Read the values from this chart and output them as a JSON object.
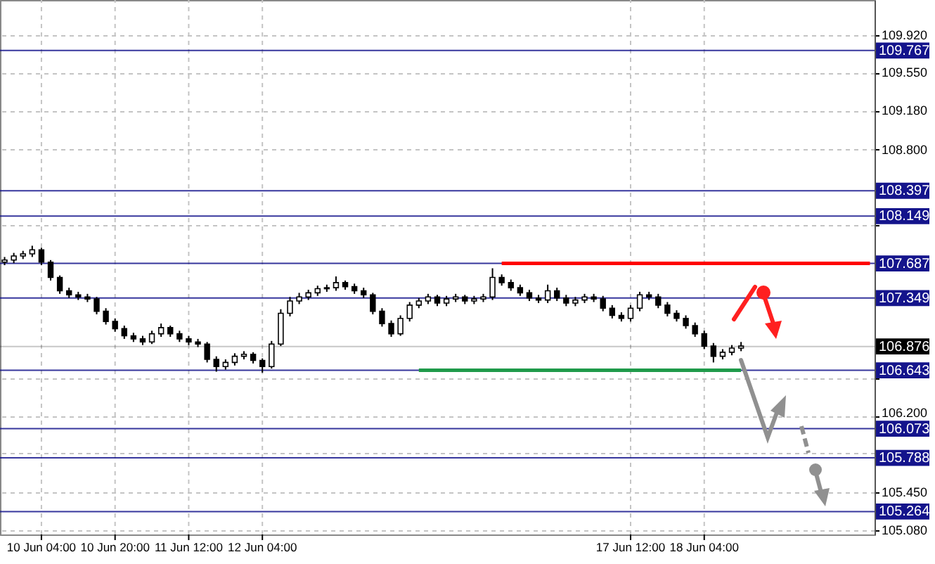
{
  "chart_data": {
    "type": "candlestick",
    "color": "#000000",
    "categories": [
      null,
      null,
      null,
      null,
      "10 Jun 04:00",
      null,
      null,
      null,
      null,
      null,
      null,
      null,
      "10 Jun 20:00",
      null,
      null,
      null,
      null,
      null,
      null,
      null,
      "11 Jun 12:00",
      null,
      null,
      null,
      null,
      null,
      null,
      null,
      "12 Jun 04:00",
      null,
      null,
      null,
      null,
      null,
      null,
      null,
      null,
      null,
      null,
      null,
      null,
      null,
      null,
      null,
      null,
      null,
      null,
      null,
      null,
      null,
      null,
      null,
      null,
      null,
      null,
      null,
      null,
      null,
      null,
      null,
      null,
      null,
      null,
      null,
      null,
      null,
      null,
      null,
      "17 Jun 12:00",
      null,
      null,
      null,
      null,
      null,
      null,
      null,
      "18 Jun 04:00",
      null,
      null,
      null,
      null,
      null,
      null,
      null,
      null,
      null,
      null,
      null,
      null,
      null,
      null,
      null,
      null,
      null,
      null
    ],
    "ohlc": [
      [
        107.7,
        107.75,
        107.67,
        107.72
      ],
      [
        107.72,
        107.79,
        107.69,
        107.76
      ],
      [
        107.76,
        107.81,
        107.73,
        107.78
      ],
      [
        107.78,
        107.86,
        107.75,
        107.82
      ],
      [
        107.82,
        107.84,
        107.67,
        107.7
      ],
      [
        107.7,
        107.72,
        107.52,
        107.55
      ],
      [
        107.55,
        107.57,
        107.39,
        107.42
      ],
      [
        107.42,
        107.45,
        107.35,
        107.38
      ],
      [
        107.38,
        107.41,
        107.33,
        107.36
      ],
      [
        107.36,
        107.39,
        107.31,
        107.34
      ],
      [
        107.34,
        107.36,
        107.19,
        107.22
      ],
      [
        107.22,
        107.25,
        107.09,
        107.12
      ],
      [
        107.12,
        107.15,
        107.02,
        107.05
      ],
      [
        107.05,
        107.08,
        106.95,
        106.98
      ],
      [
        106.98,
        107.01,
        106.92,
        106.95
      ],
      [
        106.95,
        106.98,
        106.89,
        106.92
      ],
      [
        106.92,
        107.03,
        106.9,
        107.0
      ],
      [
        107.0,
        107.1,
        106.97,
        107.06
      ],
      [
        107.06,
        107.08,
        106.97,
        107.0
      ],
      [
        107.0,
        107.03,
        106.92,
        106.95
      ],
      [
        106.95,
        106.98,
        106.89,
        106.92
      ],
      [
        106.92,
        106.95,
        106.87,
        106.9
      ],
      [
        106.9,
        106.92,
        106.72,
        106.75
      ],
      [
        106.75,
        106.78,
        106.63,
        106.68
      ],
      [
        106.68,
        106.75,
        106.65,
        106.72
      ],
      [
        106.72,
        106.81,
        106.69,
        106.78
      ],
      [
        106.78,
        106.83,
        106.75,
        106.8
      ],
      [
        106.8,
        106.82,
        106.71,
        106.74
      ],
      [
        106.74,
        106.76,
        106.62,
        106.68
      ],
      [
        106.68,
        106.93,
        106.66,
        106.9
      ],
      [
        106.9,
        107.24,
        106.88,
        107.2
      ],
      [
        107.2,
        107.36,
        107.17,
        107.32
      ],
      [
        107.32,
        107.4,
        107.29,
        107.36
      ],
      [
        107.36,
        107.43,
        107.33,
        107.4
      ],
      [
        107.4,
        107.47,
        107.37,
        107.44
      ],
      [
        107.44,
        107.48,
        107.41,
        107.45
      ],
      [
        107.45,
        107.56,
        107.42,
        107.5
      ],
      [
        107.5,
        107.52,
        107.43,
        107.46
      ],
      [
        107.46,
        107.49,
        107.39,
        107.42
      ],
      [
        107.42,
        107.45,
        107.35,
        107.38
      ],
      [
        107.38,
        107.4,
        107.19,
        107.22
      ],
      [
        107.22,
        107.25,
        107.07,
        107.1
      ],
      [
        107.1,
        107.13,
        106.97,
        107.0
      ],
      [
        107.0,
        107.18,
        106.98,
        107.15
      ],
      [
        107.15,
        107.31,
        107.12,
        107.28
      ],
      [
        107.28,
        107.35,
        107.25,
        107.32
      ],
      [
        107.32,
        107.39,
        107.29,
        107.36
      ],
      [
        107.36,
        107.38,
        107.27,
        107.3
      ],
      [
        107.3,
        107.37,
        107.27,
        107.34
      ],
      [
        107.34,
        107.39,
        107.31,
        107.36
      ],
      [
        107.36,
        107.38,
        107.29,
        107.32
      ],
      [
        107.32,
        107.37,
        107.29,
        107.34
      ],
      [
        107.34,
        107.39,
        107.31,
        107.36
      ],
      [
        107.36,
        107.64,
        107.33,
        107.55
      ],
      [
        107.55,
        107.58,
        107.47,
        107.5
      ],
      [
        107.5,
        107.53,
        107.42,
        107.45
      ],
      [
        107.45,
        107.48,
        107.37,
        107.4
      ],
      [
        107.4,
        107.43,
        107.32,
        107.35
      ],
      [
        107.35,
        107.38,
        107.3,
        107.33
      ],
      [
        107.33,
        107.48,
        107.3,
        107.42
      ],
      [
        107.42,
        107.45,
        107.32,
        107.35
      ],
      [
        107.35,
        107.38,
        107.27,
        107.3
      ],
      [
        107.3,
        107.36,
        107.27,
        107.33
      ],
      [
        107.33,
        107.39,
        107.3,
        107.36
      ],
      [
        107.36,
        107.39,
        107.31,
        107.34
      ],
      [
        107.34,
        107.37,
        107.22,
        107.25
      ],
      [
        107.25,
        107.28,
        107.15,
        107.18
      ],
      [
        107.18,
        107.21,
        107.12,
        107.15
      ],
      [
        107.15,
        107.28,
        107.12,
        107.25
      ],
      [
        107.25,
        107.41,
        107.22,
        107.38
      ],
      [
        107.38,
        107.41,
        107.33,
        107.36
      ],
      [
        107.36,
        107.39,
        107.25,
        107.28
      ],
      [
        107.28,
        107.31,
        107.17,
        107.2
      ],
      [
        107.2,
        107.23,
        107.12,
        107.15
      ],
      [
        107.15,
        107.18,
        107.05,
        107.08
      ],
      [
        107.08,
        107.11,
        106.97,
        107.0
      ],
      [
        107.0,
        107.03,
        106.85,
        106.88
      ],
      [
        106.88,
        106.91,
        106.72,
        106.78
      ],
      [
        106.78,
        106.85,
        106.75,
        106.82
      ],
      [
        106.82,
        106.89,
        106.79,
        106.86
      ],
      [
        106.86,
        106.92,
        106.83,
        106.88
      ],
      null,
      null,
      null,
      null,
      null,
      null,
      null,
      null,
      null,
      null,
      null,
      null,
      null,
      null
    ],
    "series": [
      {
        "type": "line",
        "color": "#ff0000",
        "values": [
          null,
          null,
          null,
          null,
          null,
          null,
          null,
          null,
          null,
          null,
          null,
          null,
          null,
          null,
          null,
          null,
          null,
          null,
          null,
          null,
          null,
          null,
          null,
          null,
          null,
          null,
          null,
          null,
          null,
          null,
          null,
          null,
          null,
          null,
          null,
          null,
          null,
          null,
          null,
          null,
          null,
          null,
          null,
          null,
          null,
          null,
          null,
          null,
          null,
          null,
          null,
          null,
          null,
          null,
          107.687,
          107.687,
          107.687,
          107.687,
          107.687,
          107.687,
          107.687,
          107.687,
          107.687,
          107.687,
          107.687,
          107.687,
          107.687,
          107.687,
          107.687,
          107.687,
          107.687,
          107.687,
          107.687,
          107.687,
          107.687,
          107.687,
          107.687,
          107.687,
          107.687,
          107.687,
          107.687,
          107.687,
          107.687,
          107.687,
          107.687,
          107.687,
          107.687,
          107.687,
          107.687,
          107.687,
          107.687,
          107.687,
          107.687,
          107.687,
          107.687
        ]
      },
      {
        "type": "line",
        "color": "#1f9a4a",
        "values": [
          null,
          null,
          null,
          null,
          null,
          null,
          null,
          null,
          null,
          null,
          null,
          null,
          null,
          null,
          null,
          null,
          null,
          null,
          null,
          null,
          null,
          null,
          null,
          null,
          null,
          null,
          null,
          null,
          null,
          null,
          null,
          null,
          null,
          null,
          null,
          null,
          null,
          null,
          null,
          null,
          null,
          null,
          null,
          null,
          null,
          106.643,
          106.643,
          106.643,
          106.643,
          106.643,
          106.643,
          106.643,
          106.643,
          106.643,
          106.643,
          106.643,
          106.643,
          106.643,
          106.643,
          106.643,
          106.643,
          106.643,
          106.643,
          106.643,
          106.643,
          106.643,
          106.643,
          106.643,
          106.643,
          106.643,
          106.643,
          106.643,
          106.643,
          106.643,
          106.643,
          106.643,
          106.643,
          106.643,
          106.643,
          106.643,
          106.643,
          null,
          null,
          null,
          null,
          null,
          null,
          null,
          null,
          null,
          null,
          null,
          null,
          null,
          null
        ]
      }
    ],
    "ylim": [
      105.04,
      110.26
    ],
    "yticks": [
      {
        "value": 109.92,
        "label": "109.920"
      },
      {
        "value": 109.55,
        "label": "109.550"
      },
      {
        "value": 109.18,
        "label": "109.180"
      },
      {
        "value": 108.8,
        "label": "108.800"
      },
      {
        "value": 108.06,
        "label": null
      },
      {
        "value": 106.57,
        "label": null
      },
      {
        "value": 106.2,
        "label": "106.200"
      },
      {
        "value": 105.83,
        "label": null
      },
      {
        "value": 105.45,
        "label": "105.450"
      },
      {
        "value": 105.08,
        "label": "105.080"
      }
    ],
    "grid": true,
    "ref_lines": [
      {
        "axis": "y",
        "value": 109.767,
        "label": "109.767",
        "color": "#14148c"
      },
      {
        "axis": "y",
        "value": 108.397,
        "label": "108.397",
        "color": "#14148c"
      },
      {
        "axis": "y",
        "value": 108.149,
        "label": "108.149",
        "color": "#14148c"
      },
      {
        "axis": "y",
        "value": 107.687,
        "label": "107.687",
        "color": "#14148c"
      },
      {
        "axis": "y",
        "value": 107.349,
        "label": "107.349",
        "color": "#14148c"
      },
      {
        "axis": "y",
        "value": 106.876,
        "label": "106.876",
        "color": "#000000"
      },
      {
        "axis": "y",
        "value": 106.643,
        "label": "106.643",
        "color": "#14148c"
      },
      {
        "axis": "y",
        "value": 106.073,
        "label": "106.073",
        "color": "#14148c"
      },
      {
        "axis": "y",
        "value": 105.788,
        "label": "105.788",
        "color": "#14148c"
      },
      {
        "axis": "y",
        "value": 105.264,
        "label": "105.264",
        "color": "#14148c"
      }
    ]
  }
}
